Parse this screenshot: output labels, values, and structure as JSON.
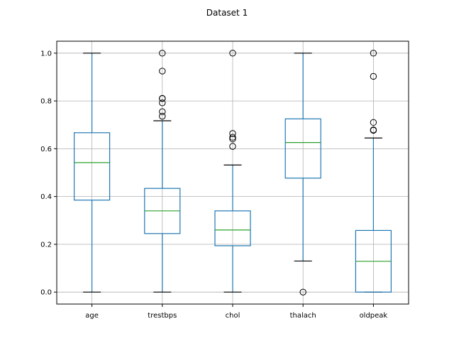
{
  "chart_data": {
    "type": "box",
    "title": "Dataset 1",
    "xlabel": "",
    "ylabel": "",
    "ylim": [
      -0.05,
      1.05
    ],
    "yticks": [
      0.0,
      0.2,
      0.4,
      0.6,
      0.8,
      1.0
    ],
    "ytick_labels": [
      "0.0",
      "0.2",
      "0.4",
      "0.6",
      "0.8",
      "1.0"
    ],
    "grid": true,
    "colors": {
      "box": "#1f77b4",
      "median": "#2ca02c",
      "whisker_cap": "#000000",
      "grid": "#b0b0b0"
    },
    "categories": [
      "age",
      "trestbps",
      "chol",
      "thalach",
      "oldpeak"
    ],
    "boxes": [
      {
        "name": "age",
        "whislo": 0.0,
        "q1": 0.385,
        "median": 0.542,
        "q3": 0.667,
        "whishi": 1.0,
        "fliers": []
      },
      {
        "name": "trestbps",
        "whislo": 0.0,
        "q1": 0.245,
        "median": 0.34,
        "q3": 0.434,
        "whishi": 0.717,
        "fliers": [
          0.736,
          0.755,
          0.792,
          0.81,
          0.811,
          0.925,
          1.0
        ]
      },
      {
        "name": "chol",
        "whislo": 0.0,
        "q1": 0.194,
        "median": 0.26,
        "q3": 0.34,
        "whishi": 0.532,
        "fliers": [
          0.61,
          0.641,
          0.648,
          0.664,
          1.0
        ]
      },
      {
        "name": "thalach",
        "whislo": 0.13,
        "q1": 0.477,
        "median": 0.626,
        "q3": 0.725,
        "whishi": 1.0,
        "fliers": [
          0.0
        ]
      },
      {
        "name": "oldpeak",
        "whislo": 0.0,
        "q1": 0.0,
        "median": 0.129,
        "q3": 0.258,
        "whishi": 0.645,
        "fliers": [
          0.677,
          0.679,
          0.71,
          0.903,
          1.0
        ]
      }
    ]
  }
}
